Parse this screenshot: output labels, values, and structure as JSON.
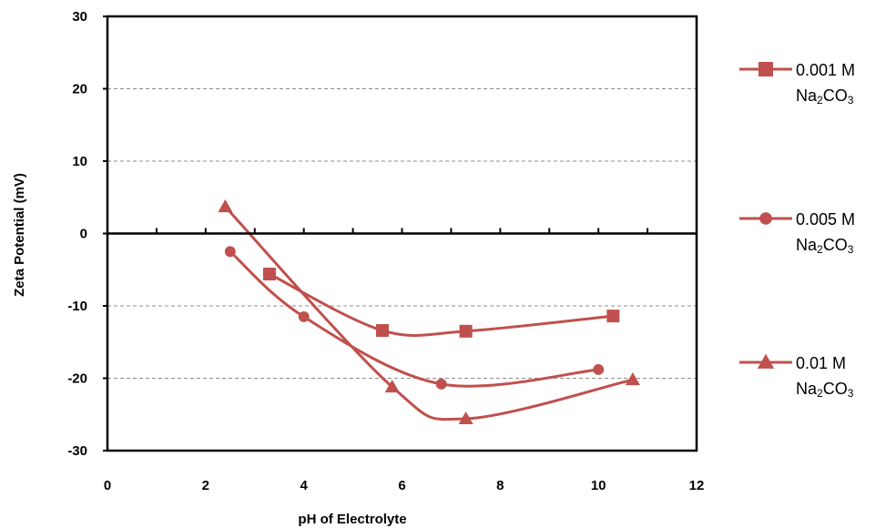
{
  "chart_data": {
    "type": "scatter",
    "title": "",
    "xlabel": "pH of Electrolyte",
    "ylabel": "Zeta Potential (mV)",
    "xlim": [
      0,
      12
    ],
    "ylim": [
      -30,
      30
    ],
    "x_ticks": [
      0,
      2,
      4,
      6,
      8,
      10,
      12
    ],
    "y_ticks": [
      30,
      20,
      10,
      0,
      -10,
      -20,
      -30
    ],
    "grid": "horizontal dashed",
    "legend_position": "right",
    "line_color": "#c0504d",
    "smoothed_lines": true,
    "series": [
      {
        "name": "0.001 M Na2CO3",
        "legend_line1": "0.001 M",
        "legend_line2_base": "Na",
        "legend_line2_sub1": "2",
        "legend_line2_mid": "CO",
        "legend_line2_sub2": "3",
        "marker": "square",
        "x": [
          3.3,
          5.6,
          7.3,
          10.3
        ],
        "y": [
          -5.6,
          -13.4,
          -13.5,
          -11.4
        ]
      },
      {
        "name": "0.005 M Na2CO3",
        "legend_line1": "0.005 M",
        "legend_line2_base": "Na",
        "legend_line2_sub1": "2",
        "legend_line2_mid": "CO",
        "legend_line2_sub2": "3",
        "marker": "circle",
        "x": [
          2.5,
          4.0,
          6.8,
          10.0
        ],
        "y": [
          -2.5,
          -11.5,
          -20.8,
          -18.8
        ]
      },
      {
        "name": "0.01 M Na2CO3",
        "legend_line1": "0.01 M",
        "legend_line2_base": "Na",
        "legend_line2_sub1": "2",
        "legend_line2_mid": "CO",
        "legend_line2_sub2": "3",
        "marker": "triangle",
        "x": [
          2.4,
          5.8,
          7.3,
          10.7
        ],
        "y": [
          3.7,
          -21.2,
          -25.6,
          -20.2
        ]
      }
    ]
  }
}
